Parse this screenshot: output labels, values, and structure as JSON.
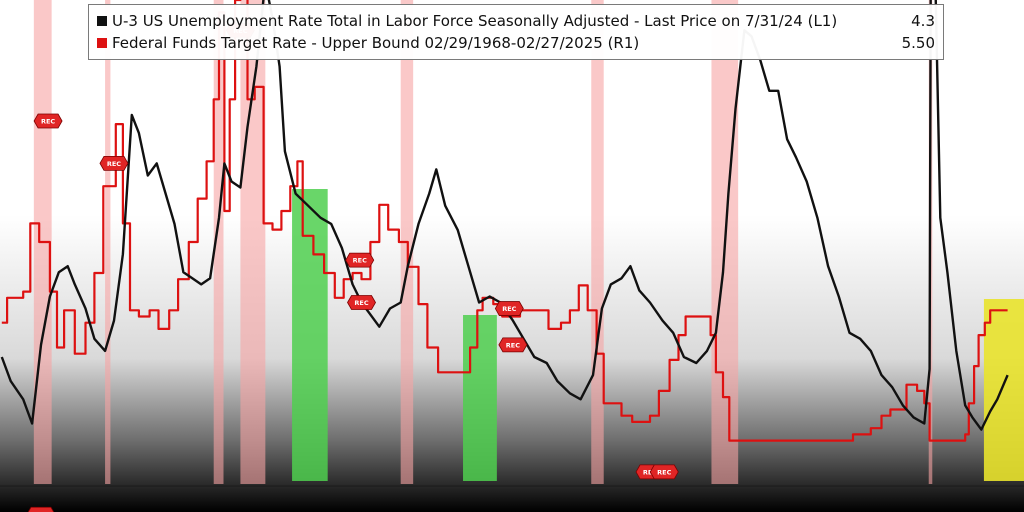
{
  "chart_data": {
    "type": "line",
    "legend_position": "top",
    "grid": false,
    "colors": {
      "unemployment": "#111111",
      "fed_funds": "#dd1111",
      "recession_band": "#f7a3a3",
      "green_band": "#4fcf4f",
      "yellow_band": "#e9e32c",
      "rec_marker": "#e02525"
    },
    "series": [
      {
        "name": "U-3 US Unemployment Rate Total in Labor Force Seasonally Adjusted - Last Price on 7/31/24 (L1)",
        "last_value": "4.3",
        "axis": "left",
        "points": [
          [
            1968.1,
            4.6
          ],
          [
            1968.6,
            4.2
          ],
          [
            1969.3,
            3.9
          ],
          [
            1969.8,
            3.5
          ],
          [
            1970.3,
            4.8
          ],
          [
            1970.8,
            5.6
          ],
          [
            1971.3,
            6.0
          ],
          [
            1971.8,
            6.1
          ],
          [
            1972.2,
            5.8
          ],
          [
            1972.8,
            5.4
          ],
          [
            1973.3,
            4.9
          ],
          [
            1973.9,
            4.7
          ],
          [
            1974.4,
            5.2
          ],
          [
            1974.9,
            6.3
          ],
          [
            1975.4,
            8.6
          ],
          [
            1975.8,
            8.3
          ],
          [
            1976.3,
            7.6
          ],
          [
            1976.8,
            7.8
          ],
          [
            1977.3,
            7.3
          ],
          [
            1977.8,
            6.8
          ],
          [
            1978.3,
            6.0
          ],
          [
            1978.8,
            5.9
          ],
          [
            1979.3,
            5.8
          ],
          [
            1979.8,
            5.9
          ],
          [
            1980.3,
            6.9
          ],
          [
            1980.6,
            7.8
          ],
          [
            1981.0,
            7.5
          ],
          [
            1981.5,
            7.4
          ],
          [
            1981.9,
            8.4
          ],
          [
            1982.4,
            9.4
          ],
          [
            1982.9,
            10.8
          ],
          [
            1983.3,
            10.2
          ],
          [
            1983.7,
            9.4
          ],
          [
            1984.0,
            8.0
          ],
          [
            1984.6,
            7.3
          ],
          [
            1985.3,
            7.1
          ],
          [
            1986.0,
            6.9
          ],
          [
            1986.6,
            6.8
          ],
          [
            1987.2,
            6.4
          ],
          [
            1987.8,
            5.8
          ],
          [
            1988.3,
            5.5
          ],
          [
            1988.8,
            5.3
          ],
          [
            1989.3,
            5.1
          ],
          [
            1989.9,
            5.4
          ],
          [
            1990.5,
            5.5
          ],
          [
            1990.9,
            6.1
          ],
          [
            1991.5,
            6.8
          ],
          [
            1992.1,
            7.3
          ],
          [
            1992.5,
            7.7
          ],
          [
            1993.0,
            7.1
          ],
          [
            1993.7,
            6.7
          ],
          [
            1994.3,
            6.1
          ],
          [
            1994.9,
            5.5
          ],
          [
            1995.5,
            5.6
          ],
          [
            1996.1,
            5.5
          ],
          [
            1996.8,
            5.2
          ],
          [
            1997.4,
            4.9
          ],
          [
            1998.0,
            4.6
          ],
          [
            1998.7,
            4.5
          ],
          [
            1999.3,
            4.2
          ],
          [
            2000.0,
            4.0
          ],
          [
            2000.6,
            3.9
          ],
          [
            2001.3,
            4.3
          ],
          [
            2001.8,
            5.4
          ],
          [
            2002.3,
            5.8
          ],
          [
            2002.9,
            5.9
          ],
          [
            2003.4,
            6.1
          ],
          [
            2003.9,
            5.7
          ],
          [
            2004.5,
            5.5
          ],
          [
            2005.2,
            5.2
          ],
          [
            2005.8,
            5.0
          ],
          [
            2006.4,
            4.6
          ],
          [
            2007.1,
            4.5
          ],
          [
            2007.7,
            4.7
          ],
          [
            2008.2,
            5.0
          ],
          [
            2008.6,
            6.0
          ],
          [
            2008.9,
            7.3
          ],
          [
            2009.3,
            8.7
          ],
          [
            2009.8,
            10.0
          ],
          [
            2010.2,
            9.9
          ],
          [
            2010.7,
            9.5
          ],
          [
            2011.2,
            9.0
          ],
          [
            2011.7,
            9.0
          ],
          [
            2012.2,
            8.2
          ],
          [
            2012.7,
            7.9
          ],
          [
            2013.3,
            7.5
          ],
          [
            2013.9,
            6.9
          ],
          [
            2014.5,
            6.1
          ],
          [
            2015.1,
            5.6
          ],
          [
            2015.7,
            5.0
          ],
          [
            2016.3,
            4.9
          ],
          [
            2016.9,
            4.7
          ],
          [
            2017.5,
            4.3
          ],
          [
            2018.1,
            4.1
          ],
          [
            2018.7,
            3.8
          ],
          [
            2019.3,
            3.6
          ],
          [
            2019.9,
            3.5
          ],
          [
            2020.2,
            4.4
          ],
          [
            2020.3,
            14.7
          ],
          [
            2020.5,
            11.1
          ],
          [
            2020.8,
            6.9
          ],
          [
            2021.2,
            6.0
          ],
          [
            2021.7,
            4.7
          ],
          [
            2022.2,
            3.8
          ],
          [
            2022.6,
            3.6
          ],
          [
            2023.1,
            3.4
          ],
          [
            2023.6,
            3.7
          ],
          [
            2024.0,
            3.9
          ],
          [
            2024.58,
            4.3
          ]
        ]
      },
      {
        "name": "Federal Funds Target Rate - Upper Bound 02/29/1968-02/27/2025 (R1)",
        "last_value": "5.50",
        "axis": "right",
        "points": [
          [
            1968.1,
            5.0
          ],
          [
            1968.4,
            6.0
          ],
          [
            1968.9,
            6.0
          ],
          [
            1969.3,
            6.25
          ],
          [
            1969.7,
            9.0
          ],
          [
            1970.2,
            8.25
          ],
          [
            1970.8,
            6.25
          ],
          [
            1971.2,
            4.0
          ],
          [
            1971.6,
            5.5
          ],
          [
            1972.2,
            3.75
          ],
          [
            1972.8,
            5.0
          ],
          [
            1973.3,
            7.0
          ],
          [
            1973.8,
            10.5
          ],
          [
            1974.5,
            13.0
          ],
          [
            1974.9,
            9.0
          ],
          [
            1975.3,
            5.5
          ],
          [
            1975.8,
            5.25
          ],
          [
            1976.4,
            5.5
          ],
          [
            1976.9,
            4.75
          ],
          [
            1977.5,
            5.5
          ],
          [
            1978.0,
            6.75
          ],
          [
            1978.6,
            8.25
          ],
          [
            1979.1,
            10.0
          ],
          [
            1979.6,
            11.5
          ],
          [
            1980.0,
            14.0
          ],
          [
            1980.3,
            17.5
          ],
          [
            1980.6,
            9.5
          ],
          [
            1980.9,
            14.0
          ],
          [
            1981.2,
            18.0
          ],
          [
            1981.5,
            19.5
          ],
          [
            1981.9,
            14.0
          ],
          [
            1982.3,
            14.5
          ],
          [
            1982.8,
            9.0
          ],
          [
            1983.3,
            8.75
          ],
          [
            1983.8,
            9.5
          ],
          [
            1984.3,
            10.5
          ],
          [
            1984.7,
            11.5
          ],
          [
            1985.0,
            8.5
          ],
          [
            1985.6,
            7.75
          ],
          [
            1986.2,
            7.0
          ],
          [
            1986.8,
            6.0
          ],
          [
            1987.3,
            6.75
          ],
          [
            1987.8,
            7.0
          ],
          [
            1988.3,
            6.75
          ],
          [
            1988.8,
            8.25
          ],
          [
            1989.3,
            9.75
          ],
          [
            1989.8,
            8.75
          ],
          [
            1990.4,
            8.25
          ],
          [
            1990.9,
            7.25
          ],
          [
            1991.5,
            5.75
          ],
          [
            1992.0,
            4.0
          ],
          [
            1992.6,
            3.0
          ],
          [
            1993.3,
            3.0
          ],
          [
            1994.0,
            3.0
          ],
          [
            1994.4,
            4.0
          ],
          [
            1994.8,
            5.5
          ],
          [
            1995.1,
            6.0
          ],
          [
            1995.7,
            5.75
          ],
          [
            1996.2,
            5.25
          ],
          [
            1997.2,
            5.5
          ],
          [
            1998.8,
            4.75
          ],
          [
            1999.5,
            5.0
          ],
          [
            2000.0,
            5.5
          ],
          [
            2000.5,
            6.5
          ],
          [
            2001.0,
            5.5
          ],
          [
            2001.5,
            3.75
          ],
          [
            2001.9,
            1.75
          ],
          [
            2002.9,
            1.25
          ],
          [
            2003.5,
            1.0
          ],
          [
            2004.5,
            1.25
          ],
          [
            2005.0,
            2.25
          ],
          [
            2005.6,
            3.5
          ],
          [
            2006.1,
            4.5
          ],
          [
            2006.5,
            5.25
          ],
          [
            2007.6,
            5.25
          ],
          [
            2007.9,
            4.5
          ],
          [
            2008.2,
            3.0
          ],
          [
            2008.6,
            2.0
          ],
          [
            2008.95,
            0.25
          ],
          [
            2015.9,
            0.5
          ],
          [
            2016.9,
            0.75
          ],
          [
            2017.5,
            1.25
          ],
          [
            2018.0,
            1.5
          ],
          [
            2018.9,
            2.5
          ],
          [
            2019.5,
            2.25
          ],
          [
            2019.9,
            1.75
          ],
          [
            2020.2,
            0.25
          ],
          [
            2022.2,
            0.5
          ],
          [
            2022.4,
            1.75
          ],
          [
            2022.7,
            3.25
          ],
          [
            2022.95,
            4.5
          ],
          [
            2023.3,
            5.0
          ],
          [
            2023.6,
            5.5
          ],
          [
            2024.58,
            5.5
          ]
        ]
      }
    ],
    "recessions": [
      [
        1969.9,
        1970.9
      ],
      [
        1973.9,
        1974.2
      ],
      [
        1980.0,
        1980.55
      ],
      [
        1981.5,
        1982.9
      ],
      [
        1990.5,
        1991.2
      ],
      [
        2001.2,
        2001.9
      ],
      [
        2007.95,
        2009.45
      ],
      [
        2020.15,
        2020.35
      ]
    ],
    "green_bands": [
      [
        1984.4,
        1986.4
      ],
      [
        1994.0,
        1995.9
      ]
    ],
    "yellow_bands": [
      [
        2023.25,
        2025.5
      ]
    ],
    "rec_markers": [
      {
        "x": 1970.7,
        "label": "REC"
      },
      {
        "x": 1970.3,
        "label": "REC"
      },
      {
        "x": 1974.4,
        "label": "REC"
      },
      {
        "x": 1981.5,
        "label": "REC"
      },
      {
        "x": 1988.2,
        "label": "REC"
      },
      {
        "x": 1988.3,
        "label": "REC"
      },
      {
        "x": 1996.6,
        "label": "REC"
      },
      {
        "x": 1996.8,
        "label": "REC"
      },
      {
        "x": 2004.5,
        "label": "REC"
      },
      {
        "x": 2005.3,
        "label": "REC"
      }
    ],
    "marker_levels": {
      "1970.7": 8.5,
      "1970.3": 2.0,
      "1974.4": 7.8,
      "1981.5": 10.0,
      "1988.2": 6.2,
      "1988.3": 5.5,
      "1996.6": 5.4,
      "1996.8": 4.8,
      "2004.5": 2.7,
      "2005.3": 2.7
    },
    "xlim": [
      1968.0,
      2025.5
    ],
    "ylim_left": [
      2.5,
      10.5
    ],
    "ylim_right": [
      -1.5,
      18.0
    ]
  }
}
